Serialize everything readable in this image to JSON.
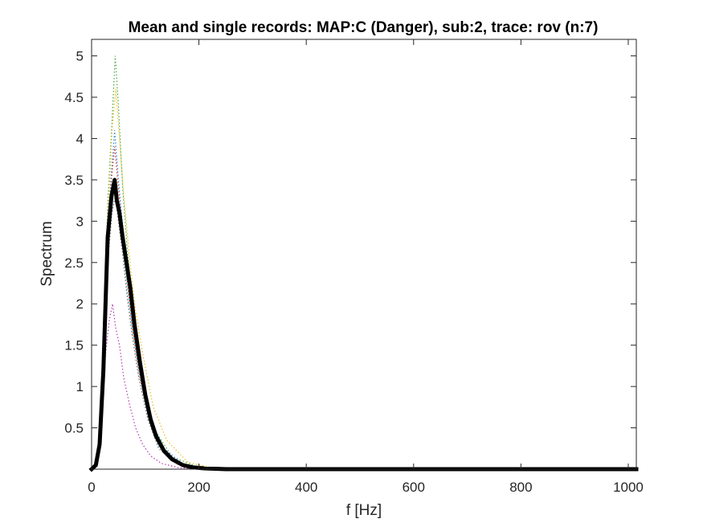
{
  "chart_data": {
    "type": "line",
    "title": "Mean and single records: MAP:C (Danger), sub:2, trace: rov (n:7)",
    "xlabel": "f [Hz]",
    "ylabel": "Spectrum",
    "xlim": [
      0,
      1015
    ],
    "ylim": [
      0,
      5.2
    ],
    "xticks": [
      0,
      200,
      400,
      600,
      800,
      1000
    ],
    "yticks": [
      0.5,
      1,
      1.5,
      2,
      2.5,
      3,
      3.5,
      4,
      4.5,
      5
    ],
    "grid": false,
    "legend": "none",
    "series": [
      {
        "style": "mean",
        "color": "#000000",
        "x": [
          0,
          8,
          15,
          22,
          30,
          37,
          43,
          47,
          52,
          58,
          65,
          72,
          80,
          90,
          100,
          110,
          120,
          135,
          150,
          170,
          190,
          210,
          250,
          1015
        ],
        "y": [
          0.0,
          0.05,
          0.3,
          1.2,
          2.8,
          3.3,
          3.5,
          3.25,
          3.1,
          2.8,
          2.5,
          2.2,
          1.75,
          1.3,
          0.9,
          0.6,
          0.4,
          0.22,
          0.12,
          0.05,
          0.02,
          0.01,
          0.0,
          0.0
        ]
      },
      {
        "style": "record",
        "color": "#33a02c",
        "x": [
          0,
          10,
          20,
          30,
          38,
          44,
          50,
          58,
          66,
          75,
          85,
          100,
          120,
          150,
          200,
          1015
        ],
        "y": [
          0.0,
          0.1,
          1.0,
          3.2,
          4.2,
          5.0,
          4.4,
          3.4,
          2.7,
          2.1,
          1.5,
          0.9,
          0.45,
          0.15,
          0.02,
          0.0
        ]
      },
      {
        "style": "record",
        "color": "#e6b800",
        "x": [
          0,
          10,
          20,
          30,
          38,
          45,
          52,
          60,
          70,
          80,
          95,
          115,
          140,
          180,
          230,
          1015
        ],
        "y": [
          0.0,
          0.1,
          1.1,
          3.0,
          4.1,
          4.6,
          4.0,
          3.3,
          2.6,
          2.0,
          1.4,
          0.75,
          0.35,
          0.08,
          0.01,
          0.0
        ]
      },
      {
        "style": "record",
        "color": "#1f78d4",
        "x": [
          0,
          10,
          20,
          30,
          37,
          43,
          50,
          57,
          66,
          76,
          90,
          110,
          135,
          170,
          220,
          1015
        ],
        "y": [
          0.0,
          0.08,
          0.9,
          2.9,
          3.6,
          4.1,
          3.5,
          3.0,
          2.4,
          1.8,
          1.2,
          0.6,
          0.25,
          0.06,
          0.01,
          0.0
        ]
      },
      {
        "style": "record",
        "color": "#cc2222",
        "x": [
          0,
          10,
          20,
          30,
          37,
          43,
          50,
          57,
          66,
          76,
          90,
          110,
          135,
          170,
          220,
          1015
        ],
        "y": [
          0.0,
          0.08,
          0.8,
          2.7,
          3.5,
          3.9,
          3.4,
          2.9,
          2.3,
          1.7,
          1.1,
          0.55,
          0.22,
          0.05,
          0.01,
          0.0
        ]
      },
      {
        "style": "record",
        "color": "#aa22aa",
        "x": [
          0,
          10,
          18,
          26,
          33,
          39,
          45,
          52,
          60,
          70,
          82,
          95,
          110,
          130,
          160,
          200,
          1015
        ],
        "y": [
          0.0,
          0.05,
          0.6,
          1.4,
          1.8,
          2.0,
          1.7,
          1.5,
          1.1,
          0.8,
          0.5,
          0.3,
          0.16,
          0.07,
          0.02,
          0.0,
          0.0
        ]
      },
      {
        "style": "record",
        "color": "#22aaaa",
        "x": [
          0,
          10,
          20,
          30,
          38,
          44,
          50,
          58,
          66,
          76,
          88,
          105,
          125,
          160,
          210,
          1015
        ],
        "y": [
          0.0,
          0.07,
          0.9,
          2.6,
          3.2,
          3.5,
          3.2,
          2.7,
          2.2,
          1.7,
          1.2,
          0.65,
          0.28,
          0.07,
          0.01,
          0.0
        ]
      },
      {
        "style": "record",
        "color": "#555555",
        "x": [
          0,
          10,
          20,
          30,
          38,
          44,
          50,
          58,
          66,
          76,
          88,
          105,
          125,
          160,
          210,
          1015
        ],
        "y": [
          0.0,
          0.07,
          0.85,
          2.5,
          3.1,
          3.3,
          3.0,
          2.6,
          2.1,
          1.6,
          1.1,
          0.6,
          0.25,
          0.06,
          0.01,
          0.0
        ]
      }
    ]
  }
}
